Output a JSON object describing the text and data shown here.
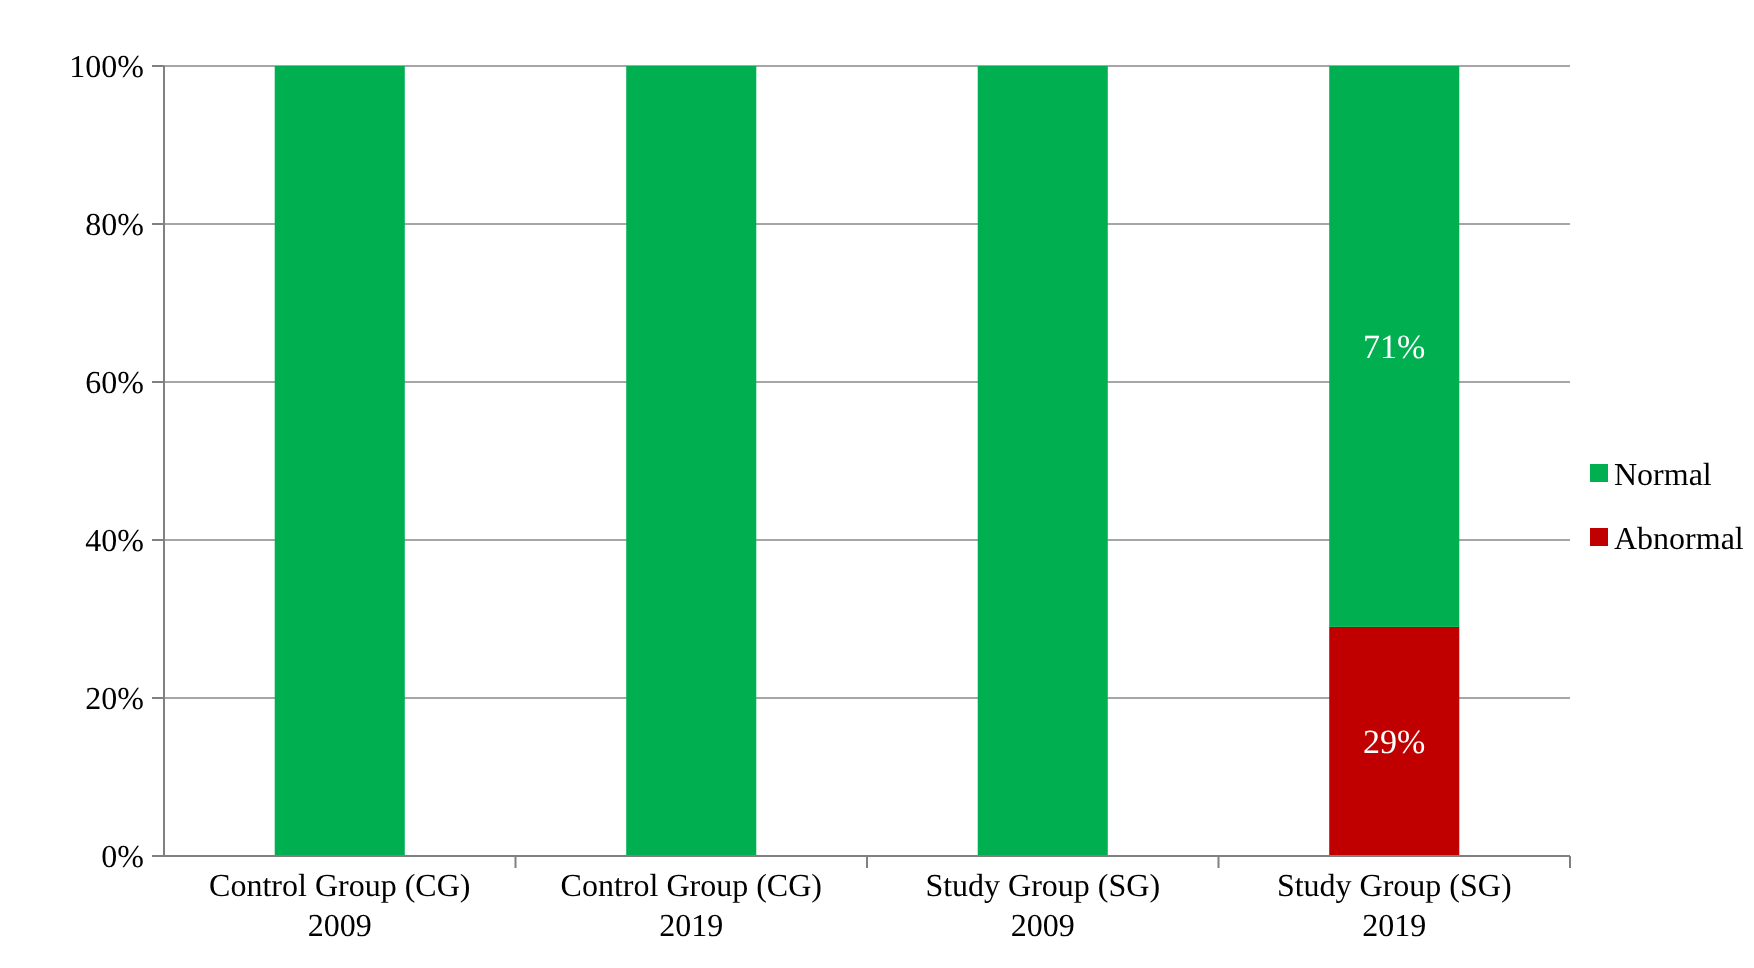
{
  "chart_data": {
    "type": "bar",
    "stacked": true,
    "categories": [
      "Control Group (CG) 2009",
      "Control Group (CG) 2019",
      "Study Group (SG) 2009",
      "Study Group (SG) 2019"
    ],
    "series": [
      {
        "name": "Abnormal",
        "color": "#c00000",
        "values": [
          0,
          0,
          0,
          29
        ],
        "value_labels": [
          null,
          null,
          null,
          "29%"
        ]
      },
      {
        "name": "Normal",
        "color": "#00b050",
        "values": [
          100,
          100,
          100,
          71
        ],
        "value_labels": [
          null,
          null,
          null,
          "71%"
        ]
      }
    ],
    "ylim": [
      0,
      100
    ],
    "yticks": [
      {
        "value": 0,
        "label": "0%"
      },
      {
        "value": 20,
        "label": "20%"
      },
      {
        "value": 40,
        "label": "40%"
      },
      {
        "value": 60,
        "label": "60%"
      },
      {
        "value": 80,
        "label": "80%"
      },
      {
        "value": 100,
        "label": "100%"
      }
    ],
    "grid": "y",
    "legend": "right"
  }
}
